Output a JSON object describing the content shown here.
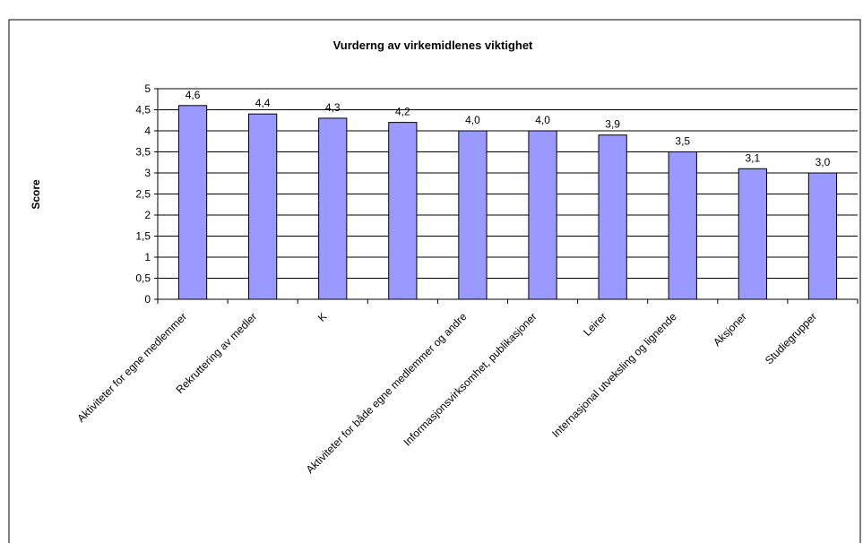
{
  "chart_data": {
    "type": "bar",
    "title": "Vurderng av virkemidlenes viktighet",
    "y_label": "Score",
    "categories": [
      "Aktiviteter for egne medlemmer",
      "Rekruttering av medler",
      "K",
      null,
      "Aktiviteter for både egne medlemmer og andre",
      "Informasjonsvirksomhet, publikasjoner",
      "Leirer",
      "Internasjonal utveksling og lignende",
      "Aksjoner",
      "Studiegrupper"
    ],
    "values": [
      4.6,
      4.4,
      4.3,
      4.2,
      4.0,
      4.0,
      3.9,
      3.5,
      3.1,
      3.0
    ],
    "value_labels": [
      "4,6",
      "4,4",
      "4,3",
      "4,2",
      "4,0",
      "4,0",
      "3,9",
      "3,5",
      "3,1",
      "3,0"
    ],
    "color": "#9999ff",
    "ylim": [
      0,
      5
    ],
    "yticks": [
      0,
      {
        "value": 0.5,
        "label": "0,5"
      },
      1,
      {
        "value": 1.5,
        "label": "1,5"
      },
      2,
      {
        "value": 2.5,
        "label": "2,5"
      },
      3,
      {
        "value": 3.5,
        "label": "3,5"
      },
      4,
      {
        "value": 4.5,
        "label": "4,5"
      },
      5
    ],
    "grid": true
  }
}
